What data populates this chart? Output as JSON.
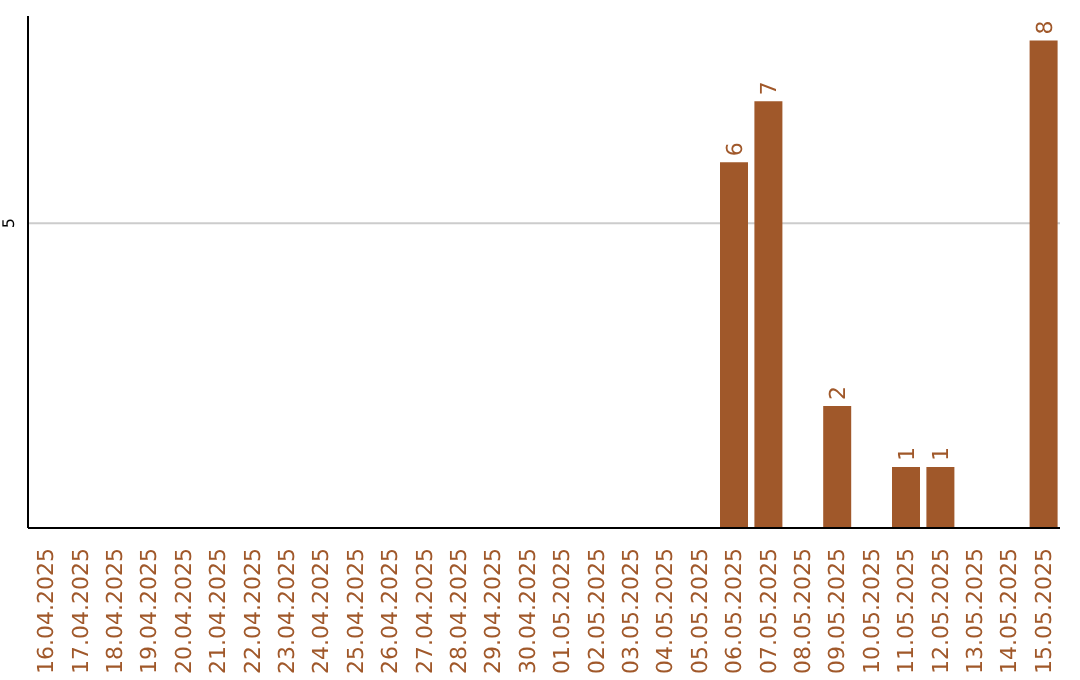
{
  "chart_data": {
    "type": "bar",
    "categories": [
      "16.04.2025",
      "17.04.2025",
      "18.04.2025",
      "19.04.2025",
      "20.04.2025",
      "21.04.2025",
      "22.04.2025",
      "23.04.2025",
      "24.04.2025",
      "25.04.2025",
      "26.04.2025",
      "27.04.2025",
      "28.04.2025",
      "29.04.2025",
      "30.04.2025",
      "01.05.2025",
      "02.05.2025",
      "03.05.2025",
      "04.05.2025",
      "05.05.2025",
      "06.05.2025",
      "07.05.2025",
      "08.05.2025",
      "09.05.2025",
      "10.05.2025",
      "11.05.2025",
      "12.05.2025",
      "13.05.2025",
      "14.05.2025",
      "15.05.2025"
    ],
    "values": [
      null,
      null,
      null,
      null,
      null,
      null,
      null,
      null,
      null,
      null,
      null,
      null,
      null,
      null,
      null,
      null,
      null,
      null,
      null,
      null,
      6,
      7,
      null,
      2,
      null,
      1,
      1,
      null,
      null,
      8
    ],
    "color": "#a0582a",
    "ylim": [
      0,
      8.4
    ],
    "yticks": [
      5
    ],
    "grid": "y",
    "data_labels": true
  }
}
